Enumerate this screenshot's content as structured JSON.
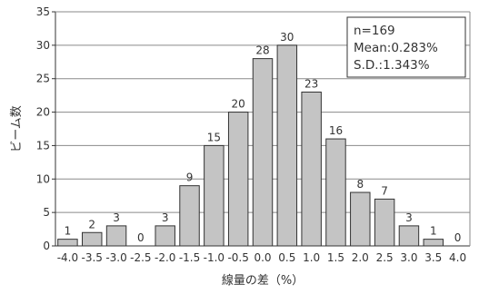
{
  "chart_data": {
    "type": "bar",
    "categories": [
      "-4.0",
      "-3.5",
      "-3.0",
      "-2.5",
      "-2.0",
      "-1.5",
      "-1.0",
      "-0.5",
      "0.0",
      "0.5",
      "1.0",
      "1.5",
      "2.0",
      "2.5",
      "3.0",
      "3.5",
      "4.0"
    ],
    "values": [
      1,
      2,
      3,
      0,
      3,
      9,
      15,
      20,
      28,
      30,
      23,
      16,
      8,
      7,
      3,
      1,
      0
    ],
    "data_labels": [
      "1",
      "2",
      "3",
      "0",
      "3",
      "9",
      "15",
      "20",
      "28",
      "30",
      "23",
      "16",
      "8",
      "7",
      "3",
      "1",
      "0"
    ],
    "xlabel": "線量の差（%）",
    "ylabel": "ビーム数",
    "ylim": [
      0,
      35
    ],
    "yticks": [
      "0",
      "5",
      "10",
      "15",
      "20",
      "25",
      "30",
      "35"
    ],
    "grid": true,
    "bar_color": "#c4c4c4",
    "bar_edge_color": "#333333",
    "stats_box": {
      "placement": "top-right",
      "lines": [
        "n=169",
        "Mean:0.283%",
        "S.D.:1.343%"
      ]
    }
  }
}
